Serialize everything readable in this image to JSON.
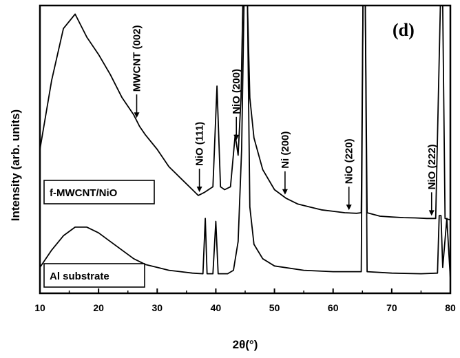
{
  "chart_data": {
    "type": "line",
    "panel_label": "(d)",
    "xlabel": "2θ(°)",
    "ylabel": "Intensity (arb. units)",
    "xlim": [
      10,
      80
    ],
    "ylim": [
      0,
      100
    ],
    "xticks": [
      10,
      20,
      30,
      40,
      50,
      60,
      70,
      80
    ],
    "y_tick_labels_shown": false,
    "grid": false,
    "series": [
      {
        "name": "f-MWCNT/NiO",
        "color": "#000000",
        "points": [
          [
            10,
            50
          ],
          [
            12,
            74
          ],
          [
            14,
            92
          ],
          [
            16,
            97
          ],
          [
            18,
            89
          ],
          [
            20,
            83
          ],
          [
            22,
            76
          ],
          [
            24,
            68
          ],
          [
            26,
            62
          ],
          [
            27,
            58
          ],
          [
            28,
            55
          ],
          [
            30,
            50
          ],
          [
            32,
            44
          ],
          [
            34,
            40
          ],
          [
            36,
            36
          ],
          [
            37,
            34
          ],
          [
            38,
            35
          ],
          [
            39.5,
            37
          ],
          [
            40.2,
            72
          ],
          [
            40.8,
            37
          ],
          [
            41.5,
            36
          ],
          [
            42.5,
            37
          ],
          [
            43.3,
            55
          ],
          [
            43.8,
            48
          ],
          [
            44.3,
            68
          ],
          [
            44.6,
            100
          ],
          [
            45.4,
            100
          ],
          [
            45.8,
            68
          ],
          [
            46.5,
            54
          ],
          [
            48,
            43
          ],
          [
            50,
            36
          ],
          [
            52,
            33
          ],
          [
            54,
            31
          ],
          [
            56,
            30
          ],
          [
            58,
            29
          ],
          [
            60,
            28.5
          ],
          [
            62,
            28
          ],
          [
            64,
            27.8
          ],
          [
            64.8,
            28
          ],
          [
            65.1,
            100
          ],
          [
            65.5,
            100
          ],
          [
            65.8,
            28
          ],
          [
            68,
            26.8
          ],
          [
            70,
            26.5
          ],
          [
            72,
            26.3
          ],
          [
            74,
            26.2
          ],
          [
            76,
            26
          ],
          [
            77.5,
            26
          ],
          [
            78.3,
            100
          ],
          [
            78.7,
            100
          ],
          [
            79.1,
            26
          ],
          [
            79.5,
            25.8
          ],
          [
            80,
            25.5
          ]
        ]
      },
      {
        "name": "Al substrate",
        "color": "#000000",
        "points": [
          [
            10,
            9
          ],
          [
            12,
            15
          ],
          [
            14,
            20
          ],
          [
            16,
            23
          ],
          [
            18,
            23
          ],
          [
            20,
            21
          ],
          [
            22,
            18
          ],
          [
            24,
            15
          ],
          [
            26,
            12
          ],
          [
            28,
            10
          ],
          [
            30,
            9
          ],
          [
            32,
            8
          ],
          [
            34,
            7.5
          ],
          [
            36,
            7
          ],
          [
            37.8,
            6.8
          ],
          [
            38.2,
            26
          ],
          [
            38.5,
            6.8
          ],
          [
            39.5,
            6.8
          ],
          [
            40,
            25
          ],
          [
            40.4,
            6.8
          ],
          [
            42,
            6.8
          ],
          [
            43,
            8
          ],
          [
            43.8,
            18
          ],
          [
            44.4,
            50
          ],
          [
            44.8,
            100
          ],
          [
            45.4,
            100
          ],
          [
            45.8,
            30
          ],
          [
            46.5,
            17
          ],
          [
            48,
            12
          ],
          [
            50,
            9.5
          ],
          [
            55,
            8
          ],
          [
            60,
            7.5
          ],
          [
            64.8,
            7.5
          ],
          [
            65.1,
            100
          ],
          [
            65.5,
            100
          ],
          [
            65.8,
            7.5
          ],
          [
            70,
            7
          ],
          [
            75,
            6.8
          ],
          [
            77.8,
            7
          ],
          [
            78.1,
            27
          ],
          [
            78.4,
            27
          ],
          [
            78.7,
            9
          ],
          [
            79.4,
            26
          ],
          [
            80,
            5
          ]
        ]
      }
    ],
    "annotations": [
      {
        "text": "MWCNT (002)",
        "x": 26.5
      },
      {
        "text": "NiO (111)",
        "x": 37.2
      },
      {
        "text": "NiO (200)",
        "x": 43.5
      },
      {
        "text": "Ni (200)",
        "x": 51.8
      },
      {
        "text": "NiO (220)",
        "x": 62.7
      },
      {
        "text": "NiO (222)",
        "x": 76.8
      }
    ],
    "legend_boxes": [
      {
        "text": "f-MWCNT/NiO",
        "series": "f-MWCNT/NiO"
      },
      {
        "text": "Al substrate",
        "series": "Al substrate"
      }
    ]
  }
}
